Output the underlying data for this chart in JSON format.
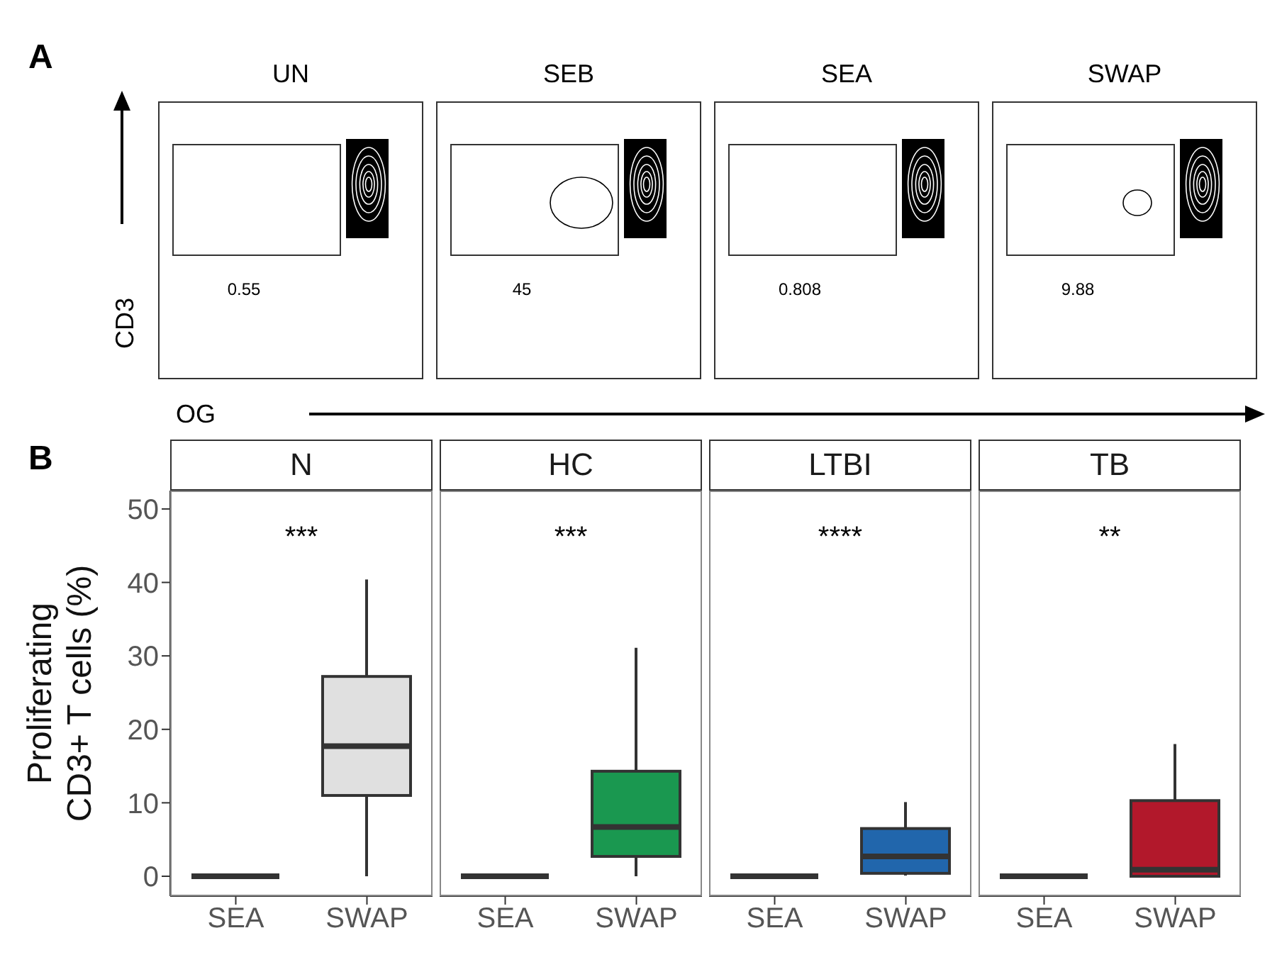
{
  "chart_data": [
    {
      "type": "other",
      "annotations": [
        "A"
      ],
      "categories": [
        "UN",
        "SEB",
        "SEA",
        "SWAP"
      ],
      "values": [
        0.55,
        45,
        0.808,
        9.88
      ],
      "data_labels": true,
      "xlabel": "OG",
      "ylabel": "CD3"
    },
    {
      "type": "box",
      "title": "N",
      "annotations": [
        "B",
        "***"
      ],
      "ylabel": "Proliferating\nCD3+ T cells (%)",
      "categories": [
        "SEA",
        "SWAP"
      ],
      "colors": [
        "#333333",
        "#e0e0e0"
      ],
      "ylim": [
        -2.7,
        52.5
      ],
      "yticks": [
        0,
        10,
        20,
        30,
        40,
        50
      ],
      "boxes": [
        {
          "low": 0,
          "q1": 0,
          "median": 0,
          "q3": 0,
          "high": 0
        },
        {
          "low": 0,
          "q1": 11.0,
          "median": 17.7,
          "q3": 27.2,
          "high": 40.4
        }
      ]
    },
    {
      "type": "box",
      "title": "HC",
      "annotations": [
        "***"
      ],
      "tick_labels": "x",
      "categories": [
        "SEA",
        "SWAP"
      ],
      "colors": [
        "#333333",
        "#1a9850"
      ],
      "ylim": [
        -2.7,
        52.5
      ],
      "yticks": [
        0,
        10,
        20,
        30,
        40,
        50
      ],
      "boxes": [
        {
          "low": 0,
          "q1": 0,
          "median": 0,
          "q3": 0,
          "high": 0
        },
        {
          "low": 0,
          "q1": 2.7,
          "median": 6.7,
          "q3": 14.3,
          "high": 31.1
        }
      ]
    },
    {
      "type": "box",
      "title": "LTBI",
      "annotations": [
        "****"
      ],
      "tick_labels": "x",
      "categories": [
        "SEA",
        "SWAP"
      ],
      "colors": [
        "#333333",
        "#2166ac"
      ],
      "ylim": [
        -2.7,
        52.5
      ],
      "yticks": [
        0,
        10,
        20,
        30,
        40,
        50
      ],
      "boxes": [
        {
          "low": 0,
          "q1": 0,
          "median": 0,
          "q3": 0,
          "high": 0
        },
        {
          "low": 0.1,
          "q1": 0.4,
          "median": 2.7,
          "q3": 6.5,
          "high": 10.1
        }
      ]
    },
    {
      "type": "box",
      "title": "TB",
      "annotations": [
        "**"
      ],
      "tick_labels": "x",
      "categories": [
        "SEA",
        "SWAP"
      ],
      "colors": [
        "#333333",
        "#b2182b"
      ],
      "ylim": [
        -2.7,
        52.5
      ],
      "yticks": [
        0,
        10,
        20,
        30,
        40,
        50
      ],
      "boxes": [
        {
          "low": 0,
          "q1": 0,
          "median": 0,
          "q3": 0,
          "high": 0
        },
        {
          "low": 0,
          "q1": 0,
          "median": 0.9,
          "q3": 10.3,
          "high": 18.0
        }
      ]
    }
  ]
}
